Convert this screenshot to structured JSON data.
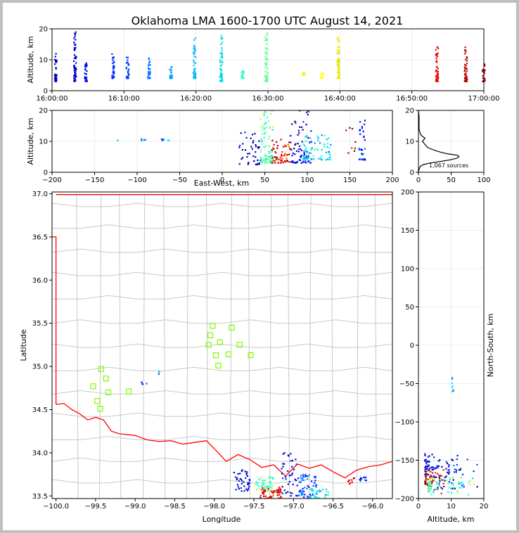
{
  "chart_data": {
    "type": "scatter",
    "title": "Oklahoma LMA 1600-1700 UTC August 14, 2021",
    "colors": {
      "early": "#0000cc",
      "mid": "#00e5ff",
      "late": "#e8e800",
      "end": "#cc0000",
      "county": "#c8c8c8",
      "state": "#ff0000",
      "stations": "#7cfc00"
    },
    "panels": [
      {
        "id": "time-altitude",
        "xlabel": "",
        "ylabel": "Altitude, km",
        "ylim": [
          0,
          20
        ],
        "xticks": [
          "16:00:00",
          "16:10:00",
          "16:20:00",
          "16:30:00",
          "16:40:00",
          "16:50:00",
          "17:00:00"
        ],
        "yticks": [
          "0",
          "10",
          "20"
        ],
        "groups": [
          {
            "t_min": 0.5,
            "y": [
              3,
              12
            ],
            "color": "#0000cc"
          },
          {
            "t_min": 3.2,
            "y": [
              3,
              19
            ],
            "color": "#0000cc"
          },
          {
            "t_min": 4.7,
            "y": [
              3,
              9
            ],
            "color": "#0011dd"
          },
          {
            "t_min": 8.5,
            "y": [
              4,
              12
            ],
            "color": "#0033ff"
          },
          {
            "t_min": 10.5,
            "y": [
              4,
              11
            ],
            "color": "#0044ff"
          },
          {
            "t_min": 13.5,
            "y": [
              4,
              11
            ],
            "color": "#0077ff"
          },
          {
            "t_min": 16.5,
            "y": [
              4,
              8
            ],
            "color": "#0099ff"
          },
          {
            "t_min": 19.8,
            "y": [
              4,
              17
            ],
            "color": "#00bbff"
          },
          {
            "t_min": 23.5,
            "y": [
              3,
              18
            ],
            "color": "#00dddd"
          },
          {
            "t_min": 26.5,
            "y": [
              4,
              7
            ],
            "color": "#33ffcc"
          },
          {
            "t_min": 29.8,
            "y": [
              3,
              20
            ],
            "color": "#66ff99"
          },
          {
            "t_min": 35.0,
            "y": [
              5,
              6
            ],
            "color": "#ddff22"
          },
          {
            "t_min": 37.5,
            "y": [
              4,
              6
            ],
            "color": "#ffff33"
          },
          {
            "t_min": 39.8,
            "y": [
              4,
              18
            ],
            "color": "#e8e800"
          },
          {
            "t_min": 53.5,
            "y": [
              3,
              15
            ],
            "color": "#ee0000"
          },
          {
            "t_min": 57.5,
            "y": [
              3,
              15
            ],
            "color": "#bb0000"
          },
          {
            "t_min": 60.0,
            "y": [
              3,
              9
            ],
            "color": "#aa0000"
          }
        ]
      },
      {
        "id": "east-west-altitude",
        "xlabel": "East-West, km",
        "ylabel": "Altitude, km",
        "xlim": [
          -200,
          200
        ],
        "ylim": [
          0,
          20
        ],
        "xticks": [
          "−200",
          "−150",
          "−100",
          "−50",
          "0",
          "50",
          "100",
          "150",
          "200"
        ],
        "yticks": [
          "0",
          "10",
          "20"
        ]
      },
      {
        "id": "altitude-histogram",
        "xlim": [
          0,
          100
        ],
        "ylim": [
          0,
          20
        ],
        "xticks": [
          "0",
          "50",
          "100"
        ],
        "yticks": [
          "0",
          "10",
          "20"
        ],
        "annotation": "1,067 sources",
        "profile": [
          {
            "alt": 0,
            "count": 0
          },
          {
            "alt": 1,
            "count": 1
          },
          {
            "alt": 2,
            "count": 3
          },
          {
            "alt": 2.5,
            "count": 8
          },
          {
            "alt": 3,
            "count": 18
          },
          {
            "alt": 3.5,
            "count": 34
          },
          {
            "alt": 4,
            "count": 48
          },
          {
            "alt": 4.5,
            "count": 58
          },
          {
            "alt": 5,
            "count": 62
          },
          {
            "alt": 5.5,
            "count": 60
          },
          {
            "alt": 6,
            "count": 44
          },
          {
            "alt": 6.5,
            "count": 34
          },
          {
            "alt": 7,
            "count": 26
          },
          {
            "alt": 7.5,
            "count": 20
          },
          {
            "alt": 8,
            "count": 14
          },
          {
            "alt": 9,
            "count": 10
          },
          {
            "alt": 10,
            "count": 6
          },
          {
            "alt": 11,
            "count": 10
          },
          {
            "alt": 12,
            "count": 4
          },
          {
            "alt": 13,
            "count": 2
          },
          {
            "alt": 14,
            "count": 1
          },
          {
            "alt": 16,
            "count": 1
          },
          {
            "alt": 18,
            "count": 1
          },
          {
            "alt": 20,
            "count": 0
          }
        ]
      },
      {
        "id": "map",
        "xlabel": "Longitude",
        "ylabel": "Latitude",
        "xlim": [
          -100.05,
          -95.75
        ],
        "ylim": [
          33.47,
          37.02
        ],
        "xticks": [
          "−100.0",
          "−99.5",
          "−99.0",
          "−98.5",
          "−98.0",
          "−97.5",
          "−97.0",
          "−96.5",
          "−96.0"
        ],
        "yticks": [
          "33.5",
          "34.0",
          "34.5",
          "35.0",
          "35.5",
          "36.0",
          "36.5",
          "37.0"
        ],
        "stations": [
          [
            -98.02,
            35.47
          ],
          [
            -97.78,
            35.45
          ],
          [
            -98.05,
            35.36
          ],
          [
            -98.07,
            35.25
          ],
          [
            -97.93,
            35.28
          ],
          [
            -97.68,
            35.25
          ],
          [
            -97.98,
            35.13
          ],
          [
            -97.82,
            35.14
          ],
          [
            -97.54,
            35.13
          ],
          [
            -97.95,
            35.01
          ],
          [
            -99.43,
            34.97
          ],
          [
            -99.37,
            34.86
          ],
          [
            -99.53,
            34.77
          ],
          [
            -99.34,
            34.7
          ],
          [
            -99.08,
            34.71
          ],
          [
            -99.48,
            34.6
          ],
          [
            -99.44,
            34.51
          ]
        ]
      },
      {
        "id": "altitude-north-south",
        "xlabel": "Altitude, km",
        "ylabel": "North-South, km",
        "xlim": [
          0,
          20
        ],
        "ylim": [
          -200,
          200
        ],
        "xticks": [
          "0",
          "10",
          "20"
        ],
        "yticks": [
          "−200",
          "−150",
          "−100",
          "−50",
          "0",
          "50",
          "100",
          "150",
          "200"
        ]
      }
    ]
  }
}
